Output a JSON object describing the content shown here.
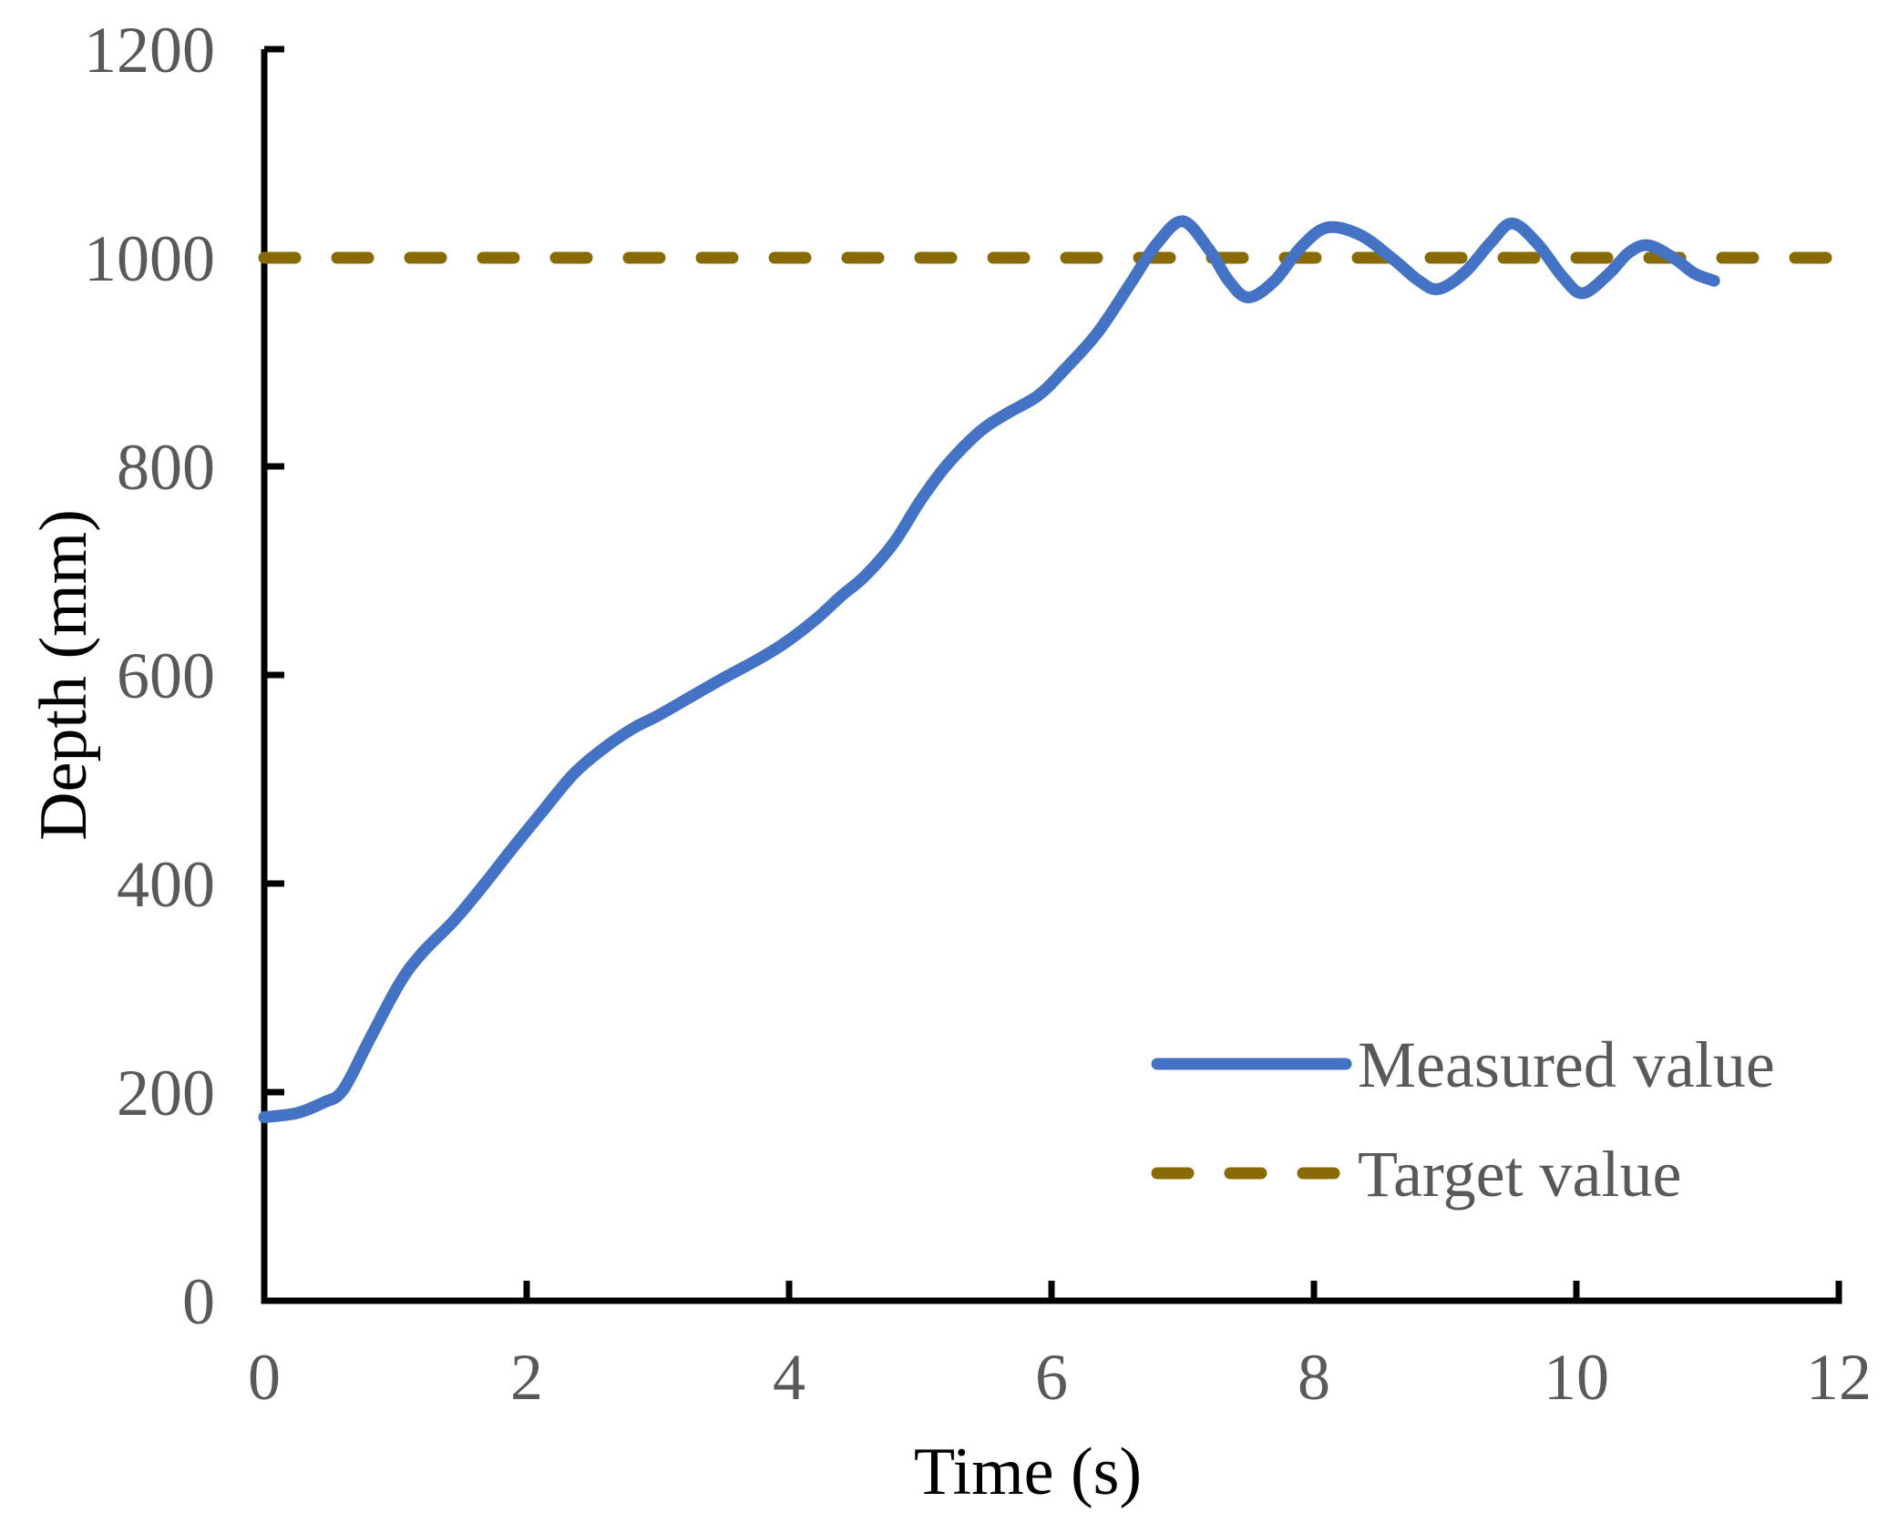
{
  "chart_data": {
    "type": "line",
    "title": "",
    "xlabel": "Time (s)",
    "ylabel": "Depth (mm)",
    "xlim": [
      0,
      12
    ],
    "ylim": [
      0,
      1200
    ],
    "xticks": [
      0,
      2,
      4,
      6,
      8,
      10,
      12
    ],
    "yticks": [
      0,
      200,
      400,
      600,
      800,
      1000,
      1200
    ],
    "grid": false,
    "legend_position": "inside-lower-right",
    "series": [
      {
        "name": "Measured value",
        "style": "solid",
        "color": "#4472C4",
        "points": [
          [
            0.0,
            176
          ],
          [
            0.25,
            180
          ],
          [
            0.45,
            190
          ],
          [
            0.6,
            202
          ],
          [
            0.8,
            250
          ],
          [
            1.03,
            304
          ],
          [
            1.2,
            333
          ],
          [
            1.45,
            365
          ],
          [
            1.7,
            403
          ],
          [
            1.88,
            432
          ],
          [
            2.1,
            466
          ],
          [
            2.35,
            504
          ],
          [
            2.57,
            528
          ],
          [
            2.8,
            548
          ],
          [
            3.0,
            561
          ],
          [
            3.25,
            579
          ],
          [
            3.5,
            597
          ],
          [
            3.75,
            614
          ],
          [
            3.96,
            630
          ],
          [
            4.2,
            653
          ],
          [
            4.4,
            676
          ],
          [
            4.58,
            695
          ],
          [
            4.8,
            727
          ],
          [
            5.0,
            767
          ],
          [
            5.2,
            801
          ],
          [
            5.45,
            833
          ],
          [
            5.65,
            850
          ],
          [
            5.9,
            868
          ],
          [
            6.1,
            893
          ],
          [
            6.35,
            928
          ],
          [
            6.6,
            975
          ],
          [
            6.8,
            1013
          ],
          [
            7.0,
            1035
          ],
          [
            7.2,
            1008
          ],
          [
            7.35,
            978
          ],
          [
            7.5,
            962
          ],
          [
            7.7,
            978
          ],
          [
            7.9,
            1010
          ],
          [
            8.1,
            1029
          ],
          [
            8.35,
            1022
          ],
          [
            8.6,
            999
          ],
          [
            8.8,
            978
          ],
          [
            8.95,
            970
          ],
          [
            9.15,
            986
          ],
          [
            9.35,
            1015
          ],
          [
            9.51,
            1033
          ],
          [
            9.7,
            1014
          ],
          [
            9.9,
            981
          ],
          [
            10.05,
            966
          ],
          [
            10.25,
            985
          ],
          [
            10.4,
            1005
          ],
          [
            10.55,
            1012
          ],
          [
            10.75,
            999
          ],
          [
            10.9,
            985
          ],
          [
            11.05,
            978
          ]
        ]
      },
      {
        "name": "Target value",
        "style": "dashed",
        "color": "#8A6A05",
        "value": 1000,
        "x_start": 0,
        "x_end": 12.05
      }
    ]
  },
  "colors": {
    "measured_line": "#4472C4",
    "target_line": "#8A6A05",
    "tick_text": "#595959",
    "axis_line": "#000000"
  }
}
